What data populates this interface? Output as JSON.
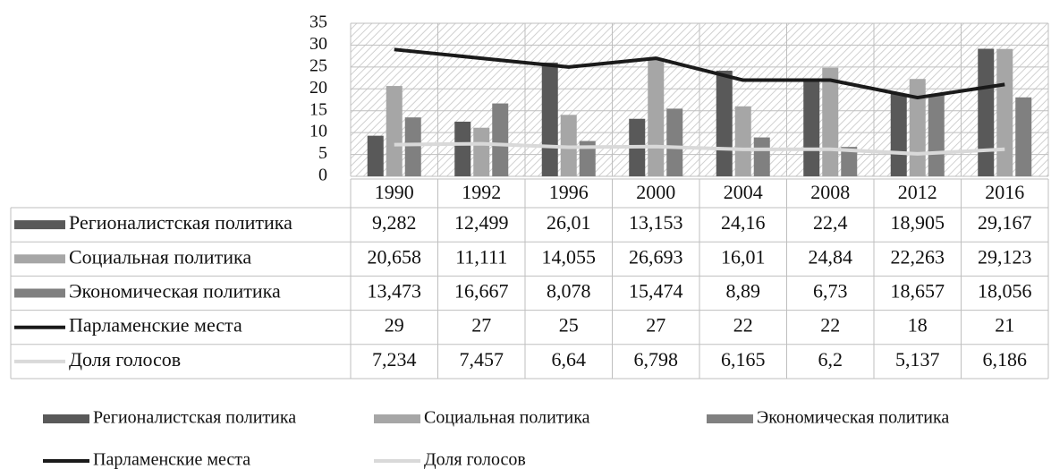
{
  "chart_data": {
    "type": "bar",
    "categories": [
      "1990",
      "1992",
      "1996",
      "2000",
      "2004",
      "2008",
      "2012",
      "2016"
    ],
    "series": [
      {
        "name": "Регионалистская политика",
        "type": "bar",
        "color": "#595959",
        "values": [
          9.282,
          12.499,
          26.01,
          13.153,
          24.16,
          22.4,
          18.905,
          29.167
        ],
        "value_labels": [
          "9,282",
          "12,499",
          "26,01",
          "13,153",
          "24,16",
          "22,4",
          "18,905",
          "29,167"
        ]
      },
      {
        "name": "Социальная политика",
        "type": "bar",
        "color": "#a6a6a6",
        "values": [
          20.658,
          11.111,
          14.055,
          26.693,
          16.01,
          24.84,
          22.263,
          29.123
        ],
        "value_labels": [
          "20,658",
          "11,111",
          "14,055",
          "26,693",
          "16,01",
          "24,84",
          "22,263",
          "29,123"
        ]
      },
      {
        "name": "Экономическая политика",
        "type": "bar",
        "color": "#808080",
        "values": [
          13.473,
          16.667,
          8.078,
          15.474,
          8.89,
          6.73,
          18.657,
          18.056
        ],
        "value_labels": [
          "13,473",
          "16,667",
          "8,078",
          "15,474",
          "8,89",
          "6,73",
          "18,657",
          "18,056"
        ]
      },
      {
        "name": "Парламенские места",
        "type": "line",
        "color": "#1a1a1a",
        "values": [
          29,
          27,
          25,
          27,
          22,
          22,
          18,
          21
        ]
      },
      {
        "name": "Доля голосов",
        "type": "line",
        "color": "#d9d9d9",
        "values": [
          7.234,
          7.457,
          6.64,
          6.798,
          6.165,
          6.2,
          5.137,
          6.186
        ],
        "value_labels": [
          "7,234",
          "7,457",
          "6,64",
          "6,798",
          "6,165",
          "6,2",
          "5,137",
          "6,186"
        ]
      }
    ],
    "ylim": [
      0,
      35
    ],
    "yticks": [
      0,
      5,
      10,
      15,
      20,
      25,
      30,
      35
    ],
    "grid": true,
    "legend": "bottom"
  }
}
